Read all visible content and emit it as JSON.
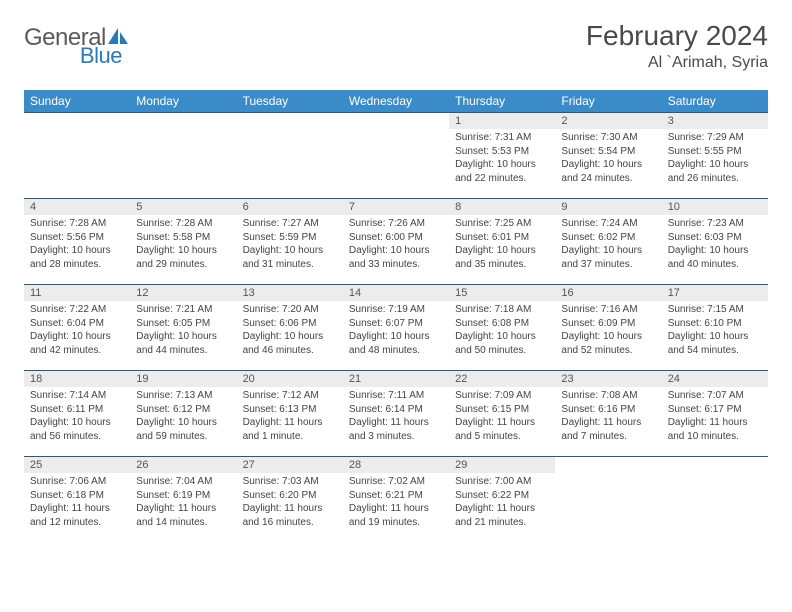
{
  "brand": {
    "part1": "General",
    "part2": "Blue"
  },
  "title": "February 2024",
  "location": "Al `Arimah, Syria",
  "colors": {
    "header_bg": "#3b8bc8",
    "header_text": "#ffffff",
    "row_border": "#2a5a7a",
    "daynum_bg": "#ececec",
    "text": "#444444",
    "brand_gray": "#5a5a5a",
    "brand_blue": "#2a7ab8"
  },
  "weekdays": [
    "Sunday",
    "Monday",
    "Tuesday",
    "Wednesday",
    "Thursday",
    "Friday",
    "Saturday"
  ],
  "weeks": [
    [
      null,
      null,
      null,
      null,
      {
        "n": "1",
        "sr": "Sunrise: 7:31 AM",
        "ss": "Sunset: 5:53 PM",
        "dl": "Daylight: 10 hours and 22 minutes."
      },
      {
        "n": "2",
        "sr": "Sunrise: 7:30 AM",
        "ss": "Sunset: 5:54 PM",
        "dl": "Daylight: 10 hours and 24 minutes."
      },
      {
        "n": "3",
        "sr": "Sunrise: 7:29 AM",
        "ss": "Sunset: 5:55 PM",
        "dl": "Daylight: 10 hours and 26 minutes."
      }
    ],
    [
      {
        "n": "4",
        "sr": "Sunrise: 7:28 AM",
        "ss": "Sunset: 5:56 PM",
        "dl": "Daylight: 10 hours and 28 minutes."
      },
      {
        "n": "5",
        "sr": "Sunrise: 7:28 AM",
        "ss": "Sunset: 5:58 PM",
        "dl": "Daylight: 10 hours and 29 minutes."
      },
      {
        "n": "6",
        "sr": "Sunrise: 7:27 AM",
        "ss": "Sunset: 5:59 PM",
        "dl": "Daylight: 10 hours and 31 minutes."
      },
      {
        "n": "7",
        "sr": "Sunrise: 7:26 AM",
        "ss": "Sunset: 6:00 PM",
        "dl": "Daylight: 10 hours and 33 minutes."
      },
      {
        "n": "8",
        "sr": "Sunrise: 7:25 AM",
        "ss": "Sunset: 6:01 PM",
        "dl": "Daylight: 10 hours and 35 minutes."
      },
      {
        "n": "9",
        "sr": "Sunrise: 7:24 AM",
        "ss": "Sunset: 6:02 PM",
        "dl": "Daylight: 10 hours and 37 minutes."
      },
      {
        "n": "10",
        "sr": "Sunrise: 7:23 AM",
        "ss": "Sunset: 6:03 PM",
        "dl": "Daylight: 10 hours and 40 minutes."
      }
    ],
    [
      {
        "n": "11",
        "sr": "Sunrise: 7:22 AM",
        "ss": "Sunset: 6:04 PM",
        "dl": "Daylight: 10 hours and 42 minutes."
      },
      {
        "n": "12",
        "sr": "Sunrise: 7:21 AM",
        "ss": "Sunset: 6:05 PM",
        "dl": "Daylight: 10 hours and 44 minutes."
      },
      {
        "n": "13",
        "sr": "Sunrise: 7:20 AM",
        "ss": "Sunset: 6:06 PM",
        "dl": "Daylight: 10 hours and 46 minutes."
      },
      {
        "n": "14",
        "sr": "Sunrise: 7:19 AM",
        "ss": "Sunset: 6:07 PM",
        "dl": "Daylight: 10 hours and 48 minutes."
      },
      {
        "n": "15",
        "sr": "Sunrise: 7:18 AM",
        "ss": "Sunset: 6:08 PM",
        "dl": "Daylight: 10 hours and 50 minutes."
      },
      {
        "n": "16",
        "sr": "Sunrise: 7:16 AM",
        "ss": "Sunset: 6:09 PM",
        "dl": "Daylight: 10 hours and 52 minutes."
      },
      {
        "n": "17",
        "sr": "Sunrise: 7:15 AM",
        "ss": "Sunset: 6:10 PM",
        "dl": "Daylight: 10 hours and 54 minutes."
      }
    ],
    [
      {
        "n": "18",
        "sr": "Sunrise: 7:14 AM",
        "ss": "Sunset: 6:11 PM",
        "dl": "Daylight: 10 hours and 56 minutes."
      },
      {
        "n": "19",
        "sr": "Sunrise: 7:13 AM",
        "ss": "Sunset: 6:12 PM",
        "dl": "Daylight: 10 hours and 59 minutes."
      },
      {
        "n": "20",
        "sr": "Sunrise: 7:12 AM",
        "ss": "Sunset: 6:13 PM",
        "dl": "Daylight: 11 hours and 1 minute."
      },
      {
        "n": "21",
        "sr": "Sunrise: 7:11 AM",
        "ss": "Sunset: 6:14 PM",
        "dl": "Daylight: 11 hours and 3 minutes."
      },
      {
        "n": "22",
        "sr": "Sunrise: 7:09 AM",
        "ss": "Sunset: 6:15 PM",
        "dl": "Daylight: 11 hours and 5 minutes."
      },
      {
        "n": "23",
        "sr": "Sunrise: 7:08 AM",
        "ss": "Sunset: 6:16 PM",
        "dl": "Daylight: 11 hours and 7 minutes."
      },
      {
        "n": "24",
        "sr": "Sunrise: 7:07 AM",
        "ss": "Sunset: 6:17 PM",
        "dl": "Daylight: 11 hours and 10 minutes."
      }
    ],
    [
      {
        "n": "25",
        "sr": "Sunrise: 7:06 AM",
        "ss": "Sunset: 6:18 PM",
        "dl": "Daylight: 11 hours and 12 minutes."
      },
      {
        "n": "26",
        "sr": "Sunrise: 7:04 AM",
        "ss": "Sunset: 6:19 PM",
        "dl": "Daylight: 11 hours and 14 minutes."
      },
      {
        "n": "27",
        "sr": "Sunrise: 7:03 AM",
        "ss": "Sunset: 6:20 PM",
        "dl": "Daylight: 11 hours and 16 minutes."
      },
      {
        "n": "28",
        "sr": "Sunrise: 7:02 AM",
        "ss": "Sunset: 6:21 PM",
        "dl": "Daylight: 11 hours and 19 minutes."
      },
      {
        "n": "29",
        "sr": "Sunrise: 7:00 AM",
        "ss": "Sunset: 6:22 PM",
        "dl": "Daylight: 11 hours and 21 minutes."
      },
      null,
      null
    ]
  ]
}
